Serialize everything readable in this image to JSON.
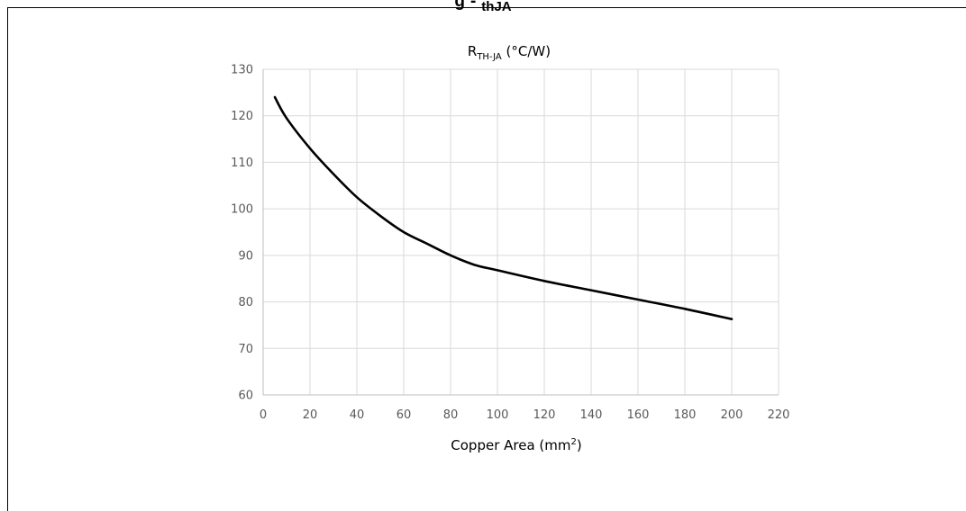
{
  "page_heading": {
    "prefix": "g",
    "middle": "-",
    "subscript": "thJA"
  },
  "chart_data": {
    "type": "line",
    "title": {
      "main": "R",
      "subscript": "TH-JA",
      "suffix": " (°C/W)"
    },
    "xlabel": {
      "main": "Copper Area (mm",
      "superscript": "2",
      "suffix": ")"
    },
    "ylabel": "",
    "xlim": [
      0,
      220
    ],
    "ylim": [
      60,
      130
    ],
    "x_ticks": [
      0,
      20,
      40,
      60,
      80,
      100,
      120,
      140,
      160,
      180,
      200,
      220
    ],
    "y_ticks": [
      60,
      70,
      80,
      90,
      100,
      110,
      120,
      130
    ],
    "grid": true,
    "legend": "none",
    "series": [
      {
        "color": "#000000",
        "x": [
          5,
          10,
          20,
          30,
          40,
          50,
          60,
          70,
          80,
          90,
          100,
          120,
          140,
          160,
          180,
          200
        ],
        "y": [
          124,
          119.5,
          113,
          107.5,
          102.5,
          98.5,
          95,
          92.5,
          90,
          88,
          86.8,
          84.5,
          82.5,
          80.5,
          78.5,
          76.3
        ]
      }
    ]
  }
}
